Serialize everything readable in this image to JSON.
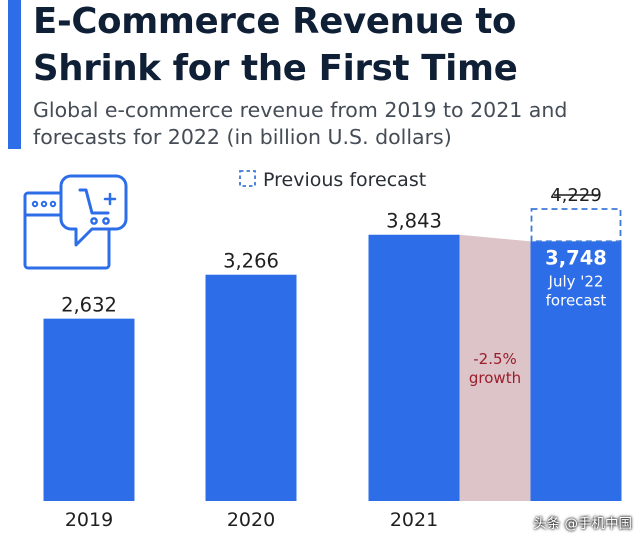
{
  "title": "E-Commerce Revenue to Shrink for the First Time",
  "subtitle": "Global e-commerce revenue from 2019 to 2021 and forecasts for 2022 (in billion U.S. dollars)",
  "legend_previous_forecast": "Previous forecast",
  "watermark": "头条 @手机中国",
  "icons": {
    "cart_window": "shopping-cart-window-icon"
  },
  "colors": {
    "bar": "#2d6ee8",
    "title": "#0f1f35",
    "previous_forecast_outline": "#3f79d6",
    "growth_band": "#dcc4c8",
    "growth_text": "#9b1d2c"
  },
  "chart_data": {
    "type": "bar",
    "categories": [
      "2019",
      "2020",
      "2021",
      ""
    ],
    "values": [
      2632,
      3266,
      3843,
      3748
    ],
    "value_labels": [
      "2,632",
      "3,266",
      "3,843",
      "3,748"
    ],
    "previous_forecast": {
      "category_index": 3,
      "value": 4229,
      "label": "4,229"
    },
    "forecast_note": [
      "July '22",
      "forecast"
    ],
    "growth_annotation": [
      "-2.5%",
      "growth"
    ],
    "ylim": [
      0,
      4229
    ],
    "xlabel": "",
    "ylabel": "",
    "grid": false,
    "legend": "top-center"
  }
}
